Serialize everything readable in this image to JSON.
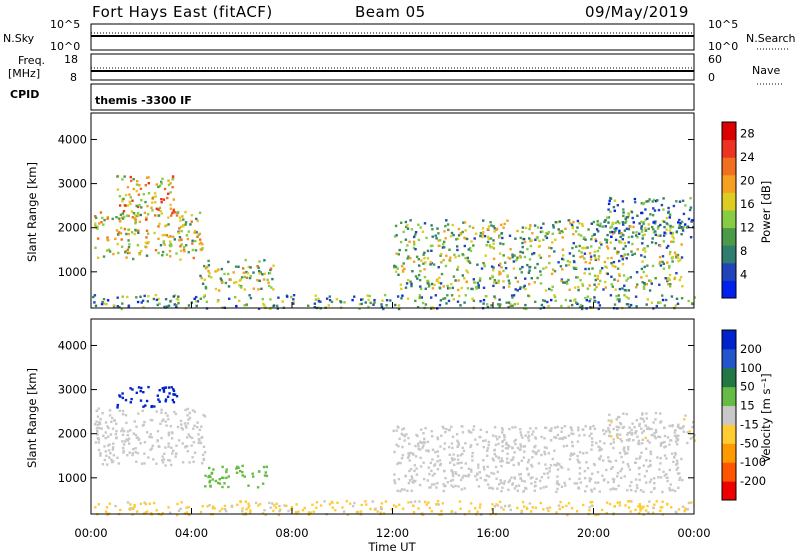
{
  "header": {
    "radar": "Fort Hays East (fitACF)",
    "beam": "Beam 05",
    "date": "09/May/2019"
  },
  "top_panels": {
    "noise": {
      "left_label": "N.Sky",
      "right_label": "N.Search",
      "left_ticks": [
        "10^5",
        "10^0"
      ],
      "right_ticks": [
        "10^5",
        "10^0"
      ]
    },
    "freq": {
      "left_label_1": "Freq.",
      "left_label_2": "[MHz]",
      "right_label": "Nave",
      "left_ticks": [
        "18",
        "8"
      ],
      "right_ticks": [
        "60",
        "0"
      ]
    },
    "cpid": {
      "left_label": "CPID",
      "text": "themis -3300 IF"
    }
  },
  "colors": {
    "power_scale": [
      "#0022ee",
      "#2244bb",
      "#2e7d6e",
      "#4a9a4a",
      "#88cc44",
      "#ddcc22",
      "#f5a020",
      "#f07020",
      "#ee3322",
      "#dd0000"
    ],
    "velocity_scale": [
      "#0022cc",
      "#2255cc",
      "#227744",
      "#66bb44",
      "#c8c8c8",
      "#ffcc33",
      "#ff9900",
      "#ff5500",
      "#ee0000"
    ]
  },
  "chart_data": [
    {
      "type": "heatmap",
      "title": "",
      "xlabel": "Time UT",
      "ylabel": "Slant Range [km]",
      "x_ticks": [
        "00:00",
        "04:00",
        "08:00",
        "12:00",
        "16:00",
        "20:00",
        "00:00"
      ],
      "y_ticks": [
        "1000",
        "2000",
        "3000",
        "4000"
      ],
      "xlim_hours": [
        0,
        24
      ],
      "ylim_km": [
        180,
        4600
      ],
      "colorbar": {
        "label": "Power [dB]",
        "ticks": [
          "4",
          "8",
          "12",
          "16",
          "20",
          "24",
          "28"
        ],
        "range": [
          0,
          30
        ]
      },
      "regions": [
        {
          "t0": 0.1,
          "t1": 4.4,
          "r0": 1300,
          "r1": 2400,
          "value": 16,
          "note_shape": "arc"
        },
        {
          "t0": 1.0,
          "t1": 3.4,
          "r0": 2200,
          "r1": 3200,
          "value": 18
        },
        {
          "t0": 4.3,
          "t1": 7.3,
          "r0": 600,
          "r1": 1300,
          "value": 14
        },
        {
          "t0": 0.0,
          "t1": 24.0,
          "r0": 180,
          "r1": 500,
          "value": 10
        },
        {
          "t0": 12.0,
          "t1": 23.5,
          "r0": 600,
          "r1": 2200,
          "value": 12
        },
        {
          "t0": 20.5,
          "t1": 24.0,
          "r0": 1800,
          "r1": 2700,
          "value": 8
        }
      ]
    },
    {
      "type": "heatmap",
      "title": "",
      "xlabel": "Time UT",
      "ylabel": "Slant Range [km]",
      "x_ticks": [
        "00:00",
        "04:00",
        "08:00",
        "12:00",
        "16:00",
        "20:00",
        "00:00"
      ],
      "y_ticks": [
        "1000",
        "2000",
        "3000",
        "4000"
      ],
      "xlim_hours": [
        0,
        24
      ],
      "ylim_km": [
        180,
        4600
      ],
      "colorbar": {
        "label": "Velocity [m s⁻¹]",
        "ticks": [
          "200",
          "100",
          "50",
          "15",
          "-15",
          "-50",
          "-100",
          "-200"
        ],
        "range": [
          -250,
          250
        ]
      },
      "regions": [
        {
          "t0": 1.0,
          "t1": 3.4,
          "r0": 2600,
          "r1": 3100,
          "value": 230
        },
        {
          "t0": 0.1,
          "t1": 4.5,
          "r0": 1300,
          "r1": 2600,
          "value": 0
        },
        {
          "t0": 4.5,
          "t1": 7.0,
          "r0": 800,
          "r1": 1300,
          "value": 60
        },
        {
          "t0": 0.0,
          "t1": 24.0,
          "r0": 180,
          "r1": 500,
          "value": -40
        },
        {
          "t0": 12.0,
          "t1": 23.5,
          "r0": 700,
          "r1": 2200,
          "value": 0
        },
        {
          "t0": 20.5,
          "t1": 24.0,
          "r0": 1800,
          "r1": 2500,
          "value": -10
        }
      ]
    }
  ]
}
